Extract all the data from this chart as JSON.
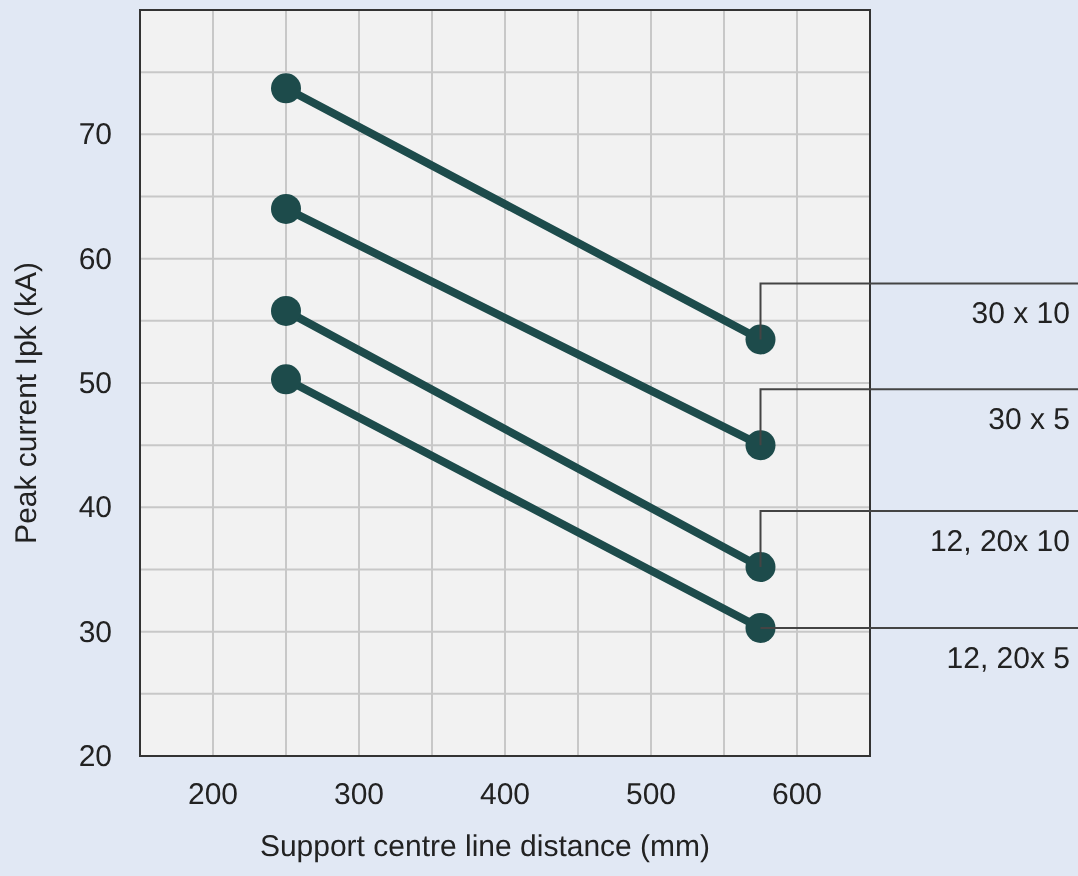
{
  "chart_data": {
    "type": "line",
    "xlabel": "Support centre line distance (mm)",
    "ylabel": "Peak current Ipk (kA)",
    "x": [
      250,
      575
    ],
    "series": [
      {
        "name": "30 x 10",
        "color": "#1d4b4b",
        "values": [
          73.7,
          53.5
        ]
      },
      {
        "name": "30 x 5",
        "color": "#1d4b4b",
        "values": [
          64,
          45
        ]
      },
      {
        "name": "12, 20x 10",
        "color": "#1d4b4b",
        "values": [
          55.8,
          35.2
        ]
      },
      {
        "name": "12, 20x 5",
        "color": "#1d4b4b",
        "values": [
          50.3,
          30.3
        ]
      }
    ],
    "xlim": [
      150,
      650
    ],
    "xticks": [
      200,
      {
        "value": 250,
        "label": null
      },
      300,
      {
        "value": 350,
        "label": null
      },
      400,
      {
        "value": 450,
        "label": null
      },
      500,
      {
        "value": 550,
        "label": null
      },
      600
    ],
    "ylim": [
      20,
      80
    ],
    "yticks": [
      20,
      {
        "value": 25,
        "label": null
      },
      30,
      {
        "value": 35,
        "label": null
      },
      40,
      {
        "value": 45,
        "label": null
      },
      50,
      {
        "value": 55,
        "label": null
      },
      60,
      {
        "value": 65,
        "label": null
      },
      70,
      {
        "value": 75,
        "label": null
      }
    ],
    "grid": true,
    "marker": "circle",
    "line_style": "solid"
  }
}
